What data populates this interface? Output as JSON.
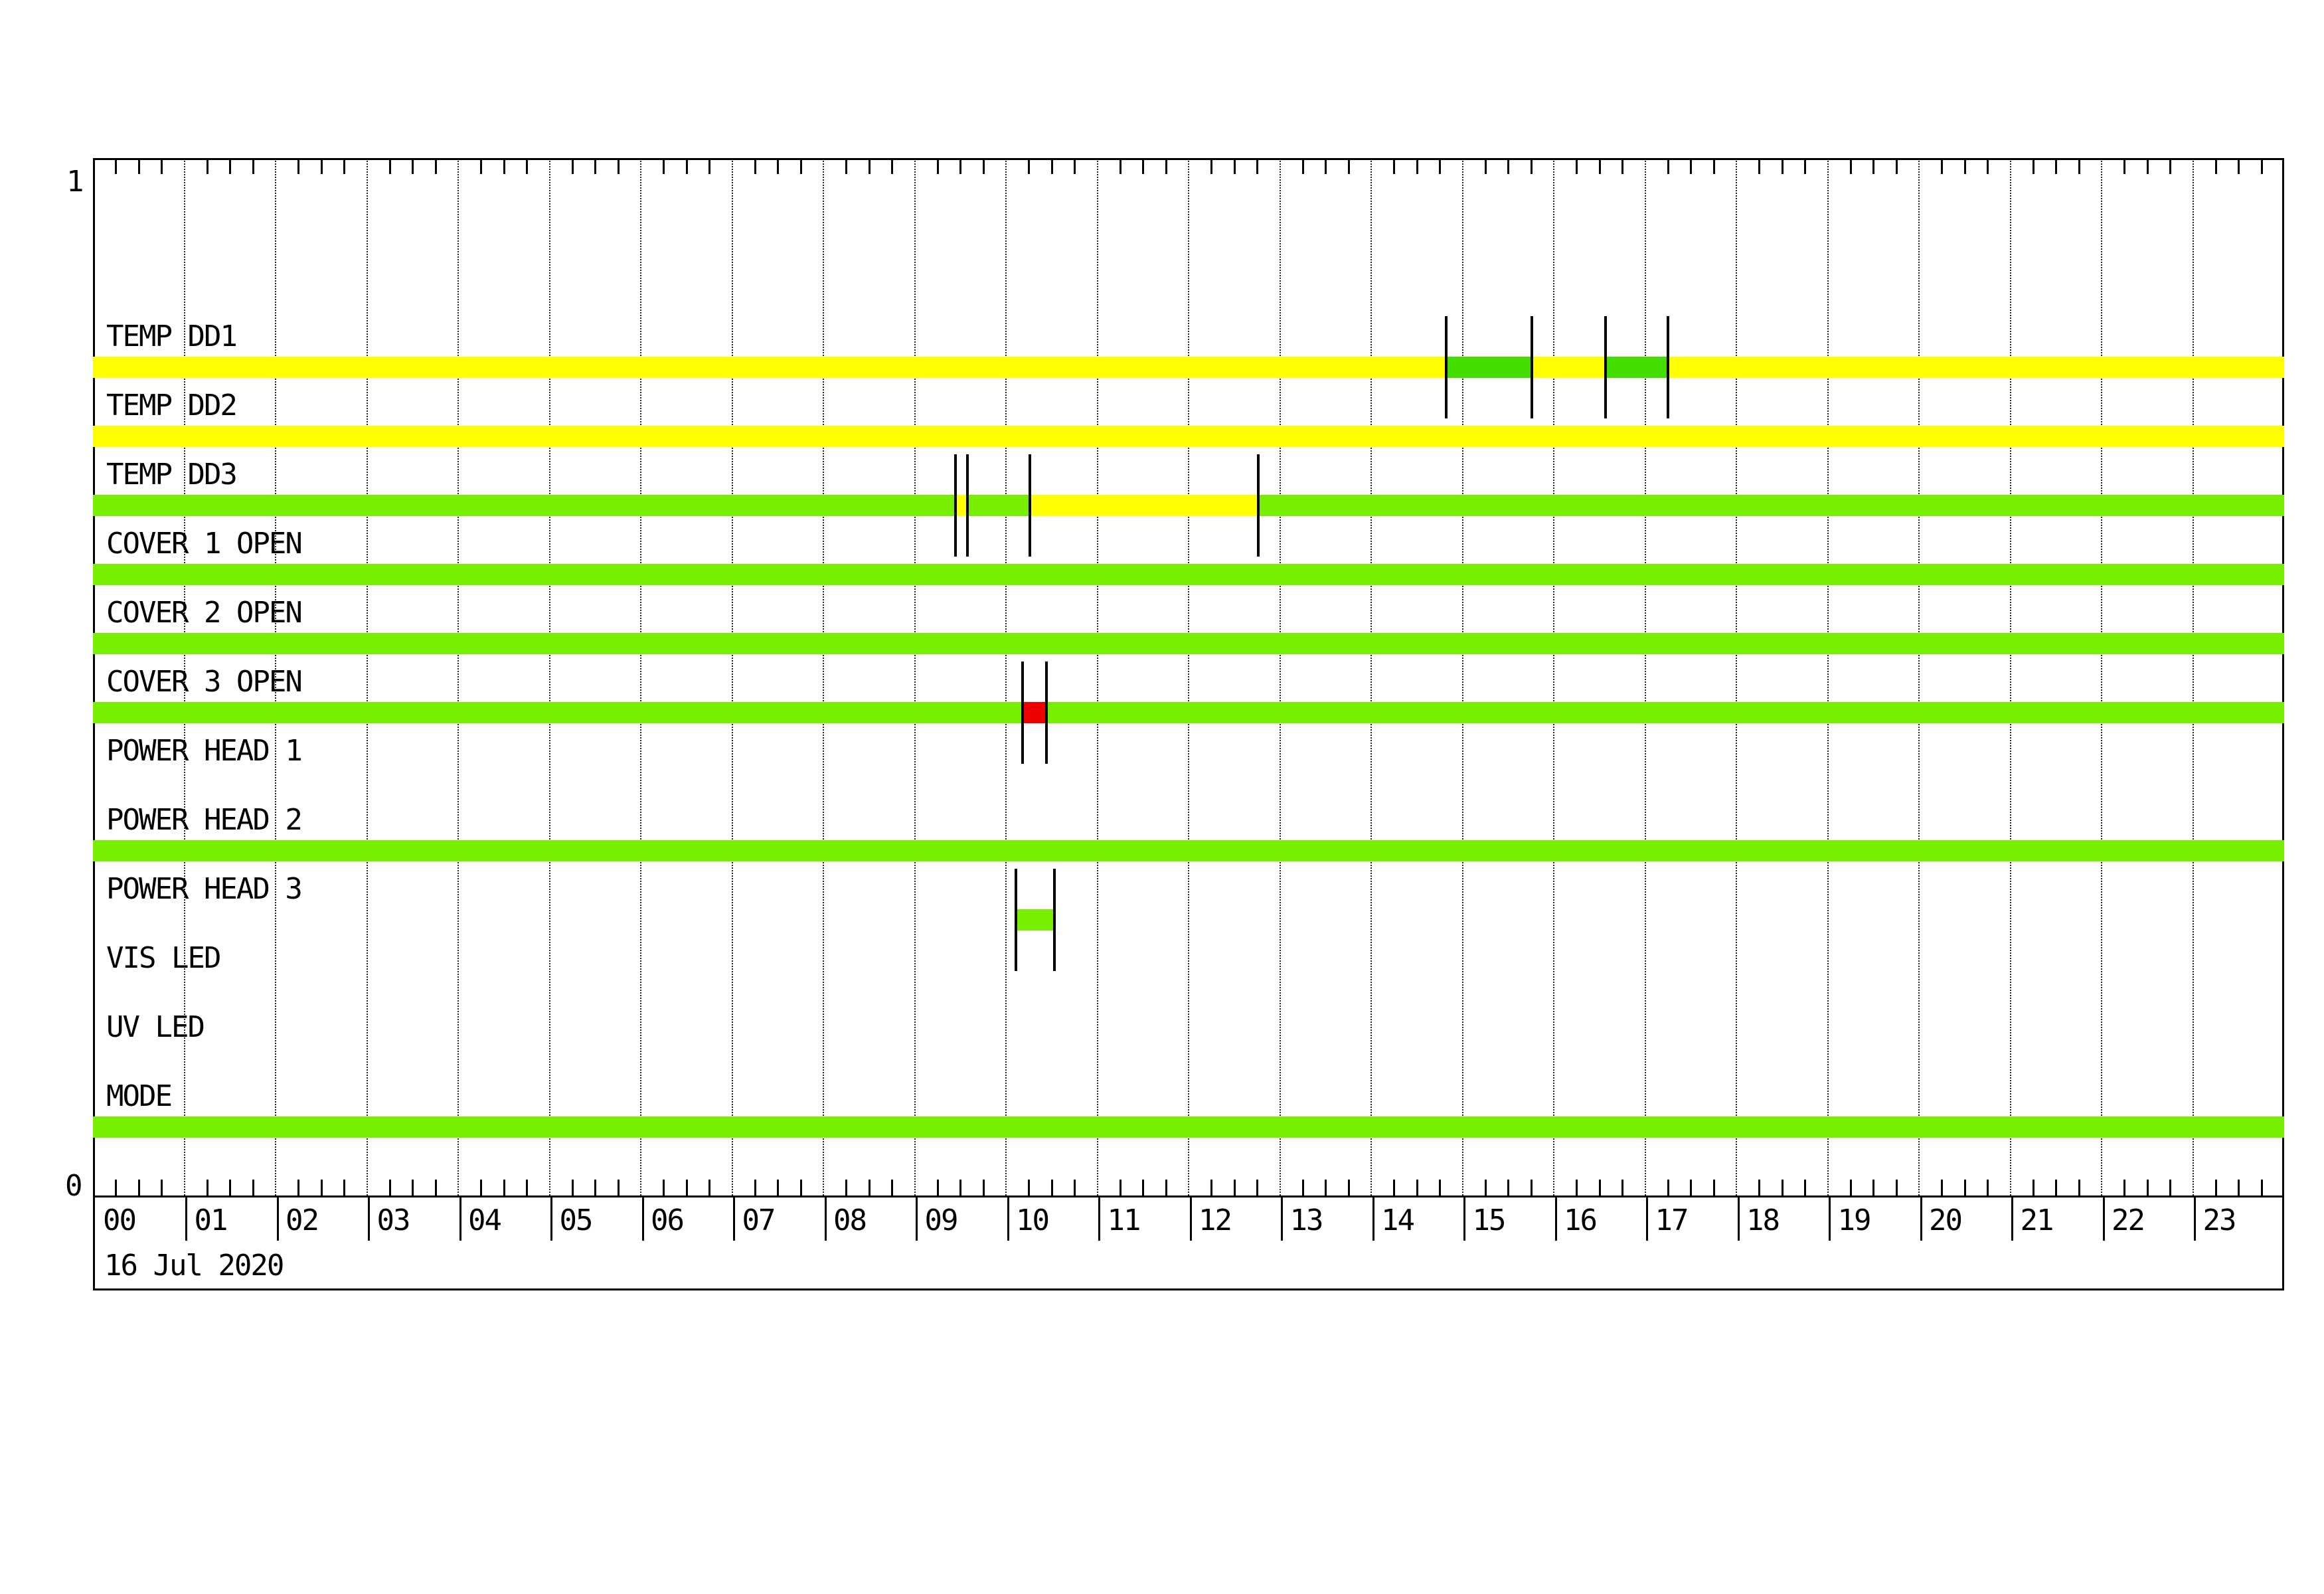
{
  "page": {
    "background": "#FFFFFF",
    "y_axis_top_label": "1",
    "y_axis_bottom_label": "0",
    "date_label": "16 Jul 2020"
  },
  "colors": {
    "yellow": "#FFFF00",
    "green": "#77EE00",
    "green_ok": "#44DD00",
    "red": "#EE0000",
    "line": "#000000"
  },
  "chart_data": {
    "type": "timeline",
    "title": "",
    "date": "16 Jul 2020",
    "x_unit": "hour_of_day",
    "x_range": [
      0,
      24
    ],
    "minor_tick_minutes": 15,
    "x_ticks": [
      "00",
      "01",
      "02",
      "03",
      "04",
      "05",
      "06",
      "07",
      "08",
      "09",
      "10",
      "11",
      "12",
      "13",
      "14",
      "15",
      "16",
      "17",
      "18",
      "19",
      "20",
      "21",
      "22",
      "23"
    ],
    "y_axis": {
      "top": "1",
      "bottom": "0"
    },
    "legend": "none",
    "grid": "hourly dotted vertical lines",
    "rows": [
      {
        "label": "TEMP DD1",
        "base": "yellow",
        "segments": [
          {
            "start": 14.82,
            "end": 15.76,
            "color": "green_ok"
          },
          {
            "start": 16.57,
            "end": 17.25,
            "color": "green_ok"
          }
        ]
      },
      {
        "label": "TEMP DD2",
        "base": "yellow",
        "segments": []
      },
      {
        "label": "TEMP DD3",
        "base": "green",
        "segments": [
          {
            "start": 9.45,
            "end": 9.58,
            "color": "yellow"
          },
          {
            "start": 10.26,
            "end": 12.76,
            "color": "yellow"
          }
        ]
      },
      {
        "label": "COVER 1 OPEN",
        "base": "green",
        "segments": []
      },
      {
        "label": "COVER 2 OPEN",
        "base": "green",
        "segments": []
      },
      {
        "label": "COVER 3 OPEN",
        "base": "green",
        "segments": [
          {
            "start": 10.18,
            "end": 10.44,
            "color": "red"
          }
        ]
      },
      {
        "label": "POWER HEAD 1",
        "base": null,
        "segments": []
      },
      {
        "label": "POWER HEAD 2",
        "base": "green",
        "segments": []
      },
      {
        "label": "POWER HEAD 3",
        "base": null,
        "segments": [
          {
            "start": 10.11,
            "end": 10.53,
            "color": "green"
          }
        ]
      },
      {
        "label": "VIS LED",
        "base": null,
        "segments": []
      },
      {
        "label": "UV LED",
        "base": null,
        "segments": []
      },
      {
        "label": "MODE",
        "base": "green",
        "segments": []
      }
    ]
  }
}
